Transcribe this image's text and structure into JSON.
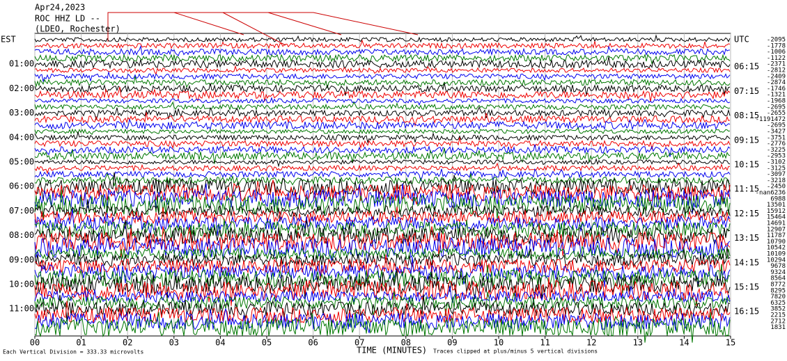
{
  "header": {
    "date": "Apr24,2023",
    "station": "ROC HHZ LD --",
    "location": "(LDEO, Rochester)"
  },
  "left_labels": [
    "EST",
    "01:00",
    "02:00",
    "03:00",
    "04:00",
    "05:00",
    "06:00",
    "07:00",
    "08:00",
    "09:00",
    "10:00",
    "11:00"
  ],
  "right_labels": [
    "UTC",
    "06:15",
    "07:15",
    "08:15",
    "09:15",
    "10:15",
    "11:15",
    "12:15",
    "13:15",
    "14:15",
    "15:15",
    "16:15"
  ],
  "trace_offsets": [
    "-2095",
    "-1778",
    "-1006",
    "-1122",
    "-2371",
    "-2812",
    "-2409",
    "-2874",
    "-1746",
    "-1321",
    "-1968",
    "-2695",
    "-2655",
    "-1191472",
    "-2695",
    "-3427",
    "-3751",
    "-2776",
    "-3225",
    "-2953",
    "-3102",
    "-3125",
    "-3097",
    "-3218",
    "-2450",
    "-nan6236",
    "6988",
    "13501",
    "15912",
    "15464",
    "14691",
    "12907",
    "11787",
    "10790",
    "10542",
    "10109",
    "10294",
    "9678",
    "9324",
    "8564",
    "8772",
    "8295",
    "7820",
    "6325",
    "3852",
    "2215",
    "2712",
    "1831"
  ],
  "x_ticks": [
    "00",
    "01",
    "02",
    "03",
    "04",
    "05",
    "06",
    "07",
    "08",
    "09",
    "10",
    "11",
    "12",
    "13",
    "14",
    "15"
  ],
  "footer": {
    "scale_note": "Each Vertical Division =  333.33 microvolts",
    "x_label": "TIME (MINUTES)",
    "clip_note": "Traces clipped at plus/minus 5 vertical divisions"
  }
}
